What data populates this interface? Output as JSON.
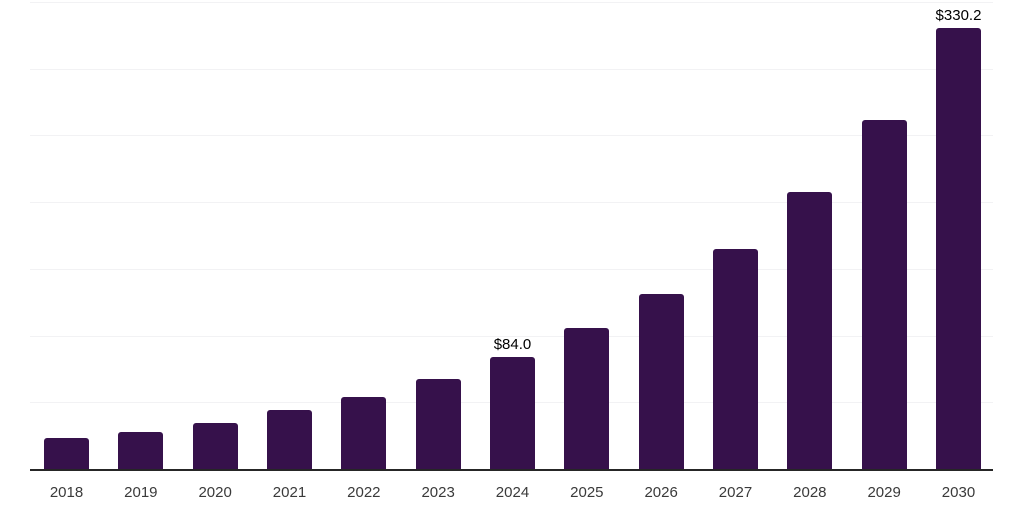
{
  "chart": {
    "background_color": "#ffffff",
    "bar_color": "#36114b",
    "grid_color": "#f2f2f4",
    "axis_color": "#262626",
    "value_label_color": "#000000",
    "tick_label_color": "#3a3a3a"
  },
  "chart_data": {
    "type": "bar",
    "title": "",
    "xlabel": "",
    "ylabel": "",
    "categories": [
      "2018",
      "2019",
      "2020",
      "2021",
      "2022",
      "2023",
      "2024",
      "2025",
      "2026",
      "2027",
      "2028",
      "2029",
      "2030"
    ],
    "values": [
      22.9,
      27.7,
      34.4,
      44.0,
      53.7,
      67.3,
      84.0,
      105.3,
      131.3,
      165.2,
      207.5,
      261.7,
      330.2
    ],
    "data_labels": [
      {
        "category": "2024",
        "text": "$84.0"
      },
      {
        "category": "2030",
        "text": "$330.2"
      }
    ],
    "ylim": [
      0,
      350
    ],
    "gridline_values": [
      50,
      100,
      150,
      200,
      250,
      300,
      350
    ],
    "grid": "horizontal",
    "legend": "none",
    "y_axis_labels_visible": false
  }
}
